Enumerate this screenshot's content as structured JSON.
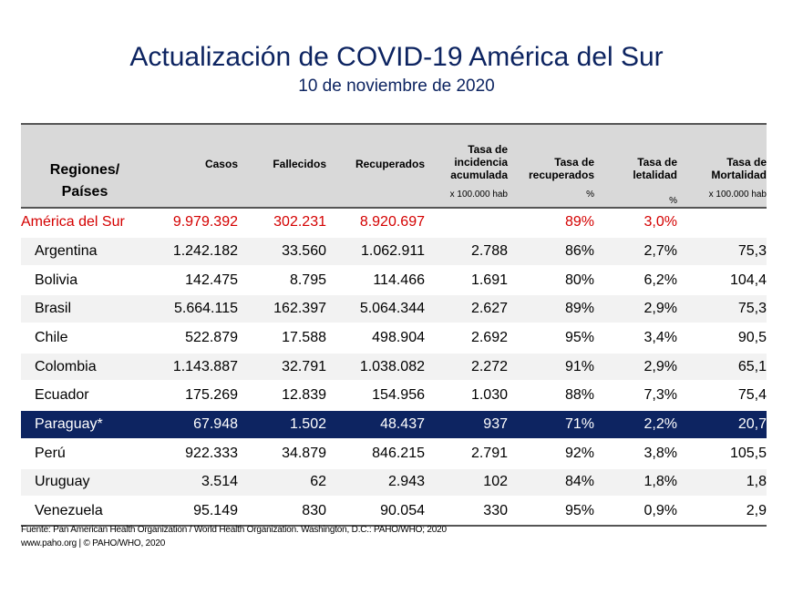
{
  "title": "Actualización de COVID-19 América del Sur",
  "subtitle": "10 de noviembre de 2020",
  "headers": {
    "region": [
      "Regiones/",
      "Países"
    ],
    "casos": "Casos",
    "fallecidos": "Fallecidos",
    "recuperados": "Recuperados",
    "incidencia": [
      "Tasa de",
      "incidencia",
      "acumulada"
    ],
    "incidencia_unit": "x 100.000 hab",
    "tasa_recuperados": [
      "Tasa de",
      "recuperados"
    ],
    "tasa_recuperados_unit": "%",
    "letalidad": [
      "Tasa de",
      "letalidad"
    ],
    "letalidad_unit": "%",
    "mortalidad": [
      "Tasa de",
      "Mortalidad"
    ],
    "mortalidad_unit": "x 100.000 hab"
  },
  "rows": [
    {
      "name": "América del Sur",
      "casos": "9.979.392",
      "fallecidos": "302.231",
      "recuperados": "8.920.697",
      "incidencia": "",
      "tasa_recuperados": "89%",
      "letalidad": "3,0%",
      "mortalidad": ""
    },
    {
      "name": "Argentina",
      "casos": "1.242.182",
      "fallecidos": "33.560",
      "recuperados": "1.062.911",
      "incidencia": "2.788",
      "tasa_recuperados": "86%",
      "letalidad": "2,7%",
      "mortalidad": "75,3"
    },
    {
      "name": "Bolivia",
      "casos": "142.475",
      "fallecidos": "8.795",
      "recuperados": "114.466",
      "incidencia": "1.691",
      "tasa_recuperados": "80%",
      "letalidad": "6,2%",
      "mortalidad": "104,4"
    },
    {
      "name": "Brasil",
      "casos": "5.664.115",
      "fallecidos": "162.397",
      "recuperados": "5.064.344",
      "incidencia": "2.627",
      "tasa_recuperados": "89%",
      "letalidad": "2,9%",
      "mortalidad": "75,3"
    },
    {
      "name": "Chile",
      "casos": "522.879",
      "fallecidos": "17.588",
      "recuperados": "498.904",
      "incidencia": "2.692",
      "tasa_recuperados": "95%",
      "letalidad": "3,4%",
      "mortalidad": "90,5"
    },
    {
      "name": "Colombia",
      "casos": "1.143.887",
      "fallecidos": "32.791",
      "recuperados": "1.038.082",
      "incidencia": "2.272",
      "tasa_recuperados": "91%",
      "letalidad": "2,9%",
      "mortalidad": "65,1"
    },
    {
      "name": "Ecuador",
      "casos": "175.269",
      "fallecidos": "12.839",
      "recuperados": "154.956",
      "incidencia": "1.030",
      "tasa_recuperados": "88%",
      "letalidad": "7,3%",
      "mortalidad": "75,4"
    },
    {
      "name": "Paraguay*",
      "casos": "67.948",
      "fallecidos": "1.502",
      "recuperados": "48.437",
      "incidencia": "937",
      "tasa_recuperados": "71%",
      "letalidad": "2,2%",
      "mortalidad": "20,7"
    },
    {
      "name": "Perú",
      "casos": "922.333",
      "fallecidos": "34.879",
      "recuperados": "846.215",
      "incidencia": "2.791",
      "tasa_recuperados": "92%",
      "letalidad": "3,8%",
      "mortalidad": "105,5"
    },
    {
      "name": "Uruguay",
      "casos": "3.514",
      "fallecidos": "62",
      "recuperados": "2.943",
      "incidencia": "102",
      "tasa_recuperados": "84%",
      "letalidad": "1,8%",
      "mortalidad": "1,8"
    },
    {
      "name": "Venezuela",
      "casos": "95.149",
      "fallecidos": "830",
      "recuperados": "90.054",
      "incidencia": "330",
      "tasa_recuperados": "95%",
      "letalidad": "0,9%",
      "mortalidad": "2,9"
    }
  ],
  "footer": {
    "source": "Fuente: Pan American Health Organization / World Health Organization. Washington, D.C.: PAHO/WHO; 2020",
    "credit": "www.paho.org | © PAHO/WHO, 2020"
  },
  "colors": {
    "navy": "#0d2461",
    "region_red": "#d40000",
    "header_gray": "#d9d9d9",
    "stripe": "#f2f2f2"
  }
}
